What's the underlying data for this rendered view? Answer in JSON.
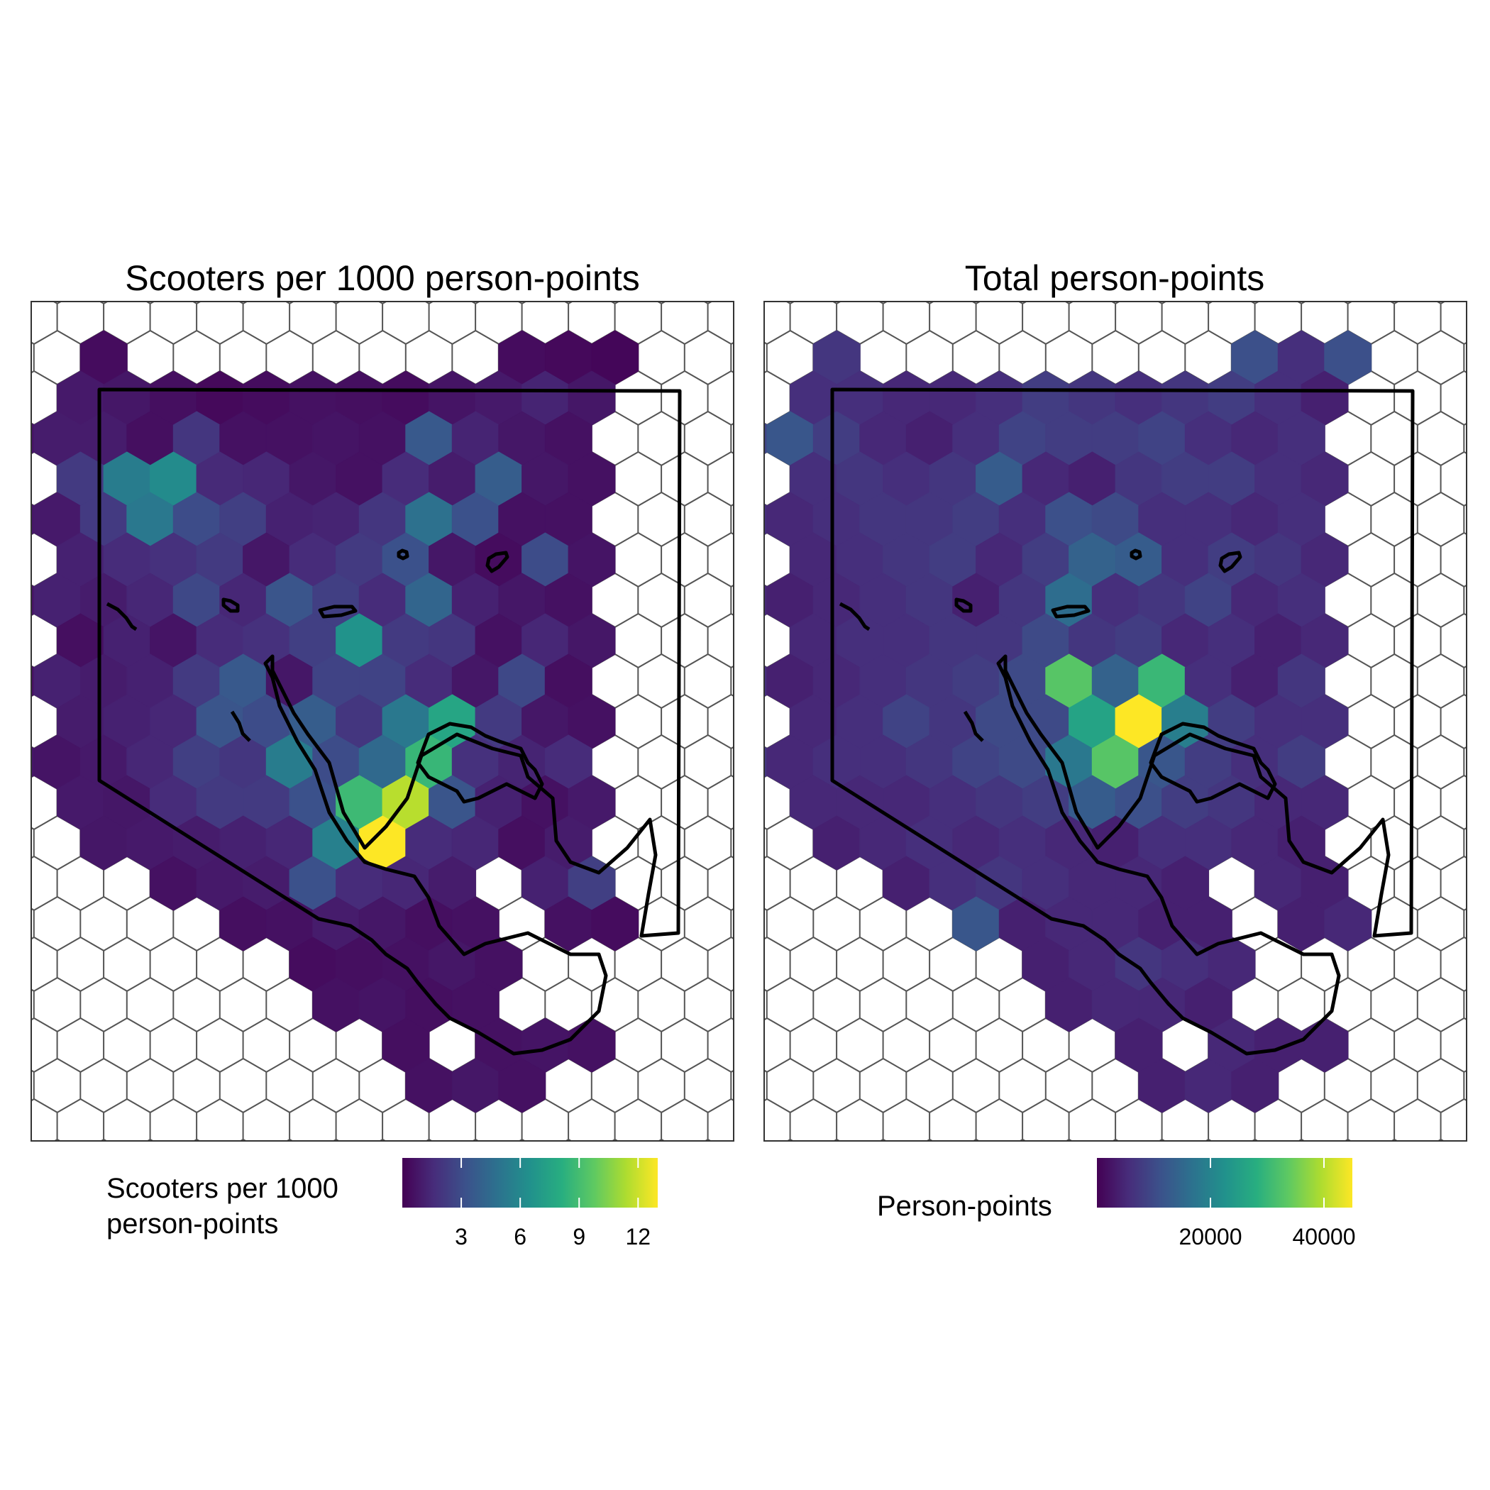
{
  "chart_data": [
    {
      "type": "heatmap",
      "title": "Scooters per 1000 person-points",
      "legend": {
        "title_lines": [
          "Scooters per 1000",
          "person-points"
        ],
        "ticks": [
          "3",
          "6",
          "9",
          "12"
        ],
        "tick_values": [
          3,
          6,
          9,
          12
        ],
        "range": [
          0,
          13
        ],
        "position": "bottom"
      },
      "value_range": [
        0,
        13
      ],
      "grid": {
        "rows": [
          {
            "start": 2,
            "values": [
              0.4,
              null,
              null,
              null,
              null,
              null,
              null,
              null,
              null,
              0.4,
              0.3,
              0.2
            ]
          },
          {
            "start": 1,
            "values": [
              0.9,
              0.8,
              0.5,
              0.3,
              0.4,
              0.6,
              0.5,
              0.4,
              0.7,
              0.9,
              1.3,
              0.8
            ]
          },
          {
            "start": 0,
            "values": [
              0.7,
              1.0,
              1.0,
              0.5,
              2.0,
              0.6,
              0.6,
              0.7,
              0.6,
              3.6,
              1.3,
              0.8,
              0.6
            ]
          },
          {
            "start": 1,
            "values": [
              2.2,
              5.4,
              6.2,
              1.5,
              1.4,
              0.8,
              0.6,
              1.6,
              1.0,
              3.8,
              0.8,
              0.6
            ]
          },
          {
            "start": 0,
            "values": [
              0.8,
              0.9,
              2.2,
              5.2,
              3.0,
              2.4,
              1.2,
              1.3,
              2.0,
              4.8,
              3.2,
              0.6,
              0.6
            ]
          },
          {
            "start": 1,
            "values": [
              1.2,
              1.6,
              1.8,
              2.2,
              0.8,
              1.6,
              2.2,
              3.2,
              0.8,
              0.4,
              3.0,
              0.7
            ]
          },
          {
            "start": 0,
            "values": [
              0.7,
              1.2,
              1.0,
              1.4,
              2.8,
              1.4,
              3.4,
              2.4,
              1.6,
              4.2,
              1.2,
              0.8,
              0.6
            ]
          },
          {
            "start": 1,
            "values": [
              0.5,
              1.2,
              0.7,
              1.6,
              1.8,
              2.4,
              6.6,
              2.2,
              2.0,
              0.6,
              1.4,
              0.8
            ]
          },
          {
            "start": 0,
            "values": [
              0.6,
              1.2,
              1.0,
              1.2,
              2.2,
              3.6,
              0.8,
              2.6,
              2.6,
              1.6,
              0.8,
              2.8,
              0.5
            ]
          },
          {
            "start": 1,
            "values": [
              1.0,
              1.2,
              1.4,
              3.4,
              3.0,
              3.8,
              2.0,
              5.2,
              7.6,
              2.2,
              0.8,
              0.6
            ]
          },
          {
            "start": 0,
            "values": [
              0.8,
              0.7,
              0.9,
              1.4,
              2.4,
              2.0,
              5.4,
              3.0,
              4.4,
              8.6,
              1.8,
              1.3,
              1.6
            ]
          },
          {
            "start": 1,
            "values": [
              0.9,
              0.8,
              1.6,
              2.2,
              2.2,
              3.2,
              8.8,
              11.6,
              3.4,
              1.2,
              0.6,
              0.9
            ]
          },
          {
            "start": 2,
            "values": [
              0.8,
              0.9,
              1.0,
              1.2,
              1.4,
              5.6,
              13.0,
              1.6,
              1.4,
              0.5,
              1.0
            ]
          },
          {
            "start": 3,
            "values": [
              0.6,
              0.9,
              1.0,
              3.2,
              1.6,
              1.4,
              1.0,
              null,
              1.2,
              2.4
            ]
          },
          {
            "start": 5,
            "values": [
              0.5,
              0.6,
              1.0,
              0.8,
              0.5,
              0.6,
              null,
              0.6,
              0.4
            ]
          },
          {
            "start": 6,
            "values": [
              0.4,
              0.5,
              0.6,
              0.8,
              0.6
            ]
          },
          {
            "start": 7,
            "values": [
              0.6,
              0.7,
              0.5,
              0.6
            ]
          },
          {
            "start": 8,
            "values": [
              0.5,
              null,
              0.6,
              0.7,
              0.6
            ]
          },
          {
            "start": 9,
            "values": [
              0.6,
              0.8,
              0.6
            ]
          }
        ]
      }
    },
    {
      "type": "heatmap",
      "title": "Total person-points",
      "legend": {
        "title_lines": [
          "Person-points"
        ],
        "ticks": [
          "20000",
          "40000"
        ],
        "tick_values": [
          20000,
          40000
        ],
        "range": [
          0,
          45000
        ],
        "position": "bottom"
      },
      "value_range": [
        0,
        45000
      ],
      "grid": {
        "rows": [
          {
            "start": 2,
            "values": [
              7000,
              null,
              null,
              null,
              null,
              null,
              null,
              null,
              null,
              11000,
              6000,
              11000
            ]
          },
          {
            "start": 1,
            "values": [
              6000,
              6000,
              5000,
              5000,
              6000,
              8000,
              7000,
              6000,
              7000,
              8000,
              6000,
              4000
            ]
          },
          {
            "start": 0,
            "values": [
              9000,
              12000,
              8000,
              5000,
              4000,
              6000,
              9000,
              8000,
              8000,
              9000,
              6000,
              5000,
              6000
            ]
          },
          {
            "start": 1,
            "values": [
              6000,
              7000,
              6000,
              7000,
              13000,
              5000,
              4000,
              7000,
              8000,
              8000,
              6000,
              5000
            ]
          },
          {
            "start": 0,
            "values": [
              6000,
              5000,
              6000,
              7000,
              7000,
              8000,
              6000,
              11000,
              10000,
              6000,
              6000,
              5000,
              6000
            ]
          },
          {
            "start": 1,
            "values": [
              5000,
              6000,
              7000,
              8000,
              5000,
              8000,
              14000,
              13000,
              6000,
              8000,
              7000,
              5000
            ]
          },
          {
            "start": 0,
            "values": [
              5000,
              4000,
              5000,
              6000,
              7000,
              4000,
              7000,
              16000,
              6000,
              7000,
              9000,
              5000,
              6000
            ]
          },
          {
            "start": 1,
            "values": [
              5000,
              6000,
              6000,
              7000,
              7000,
              10000,
              7000,
              8000,
              5000,
              6000,
              4000,
              5000
            ]
          },
          {
            "start": 0,
            "values": [
              6000,
              4000,
              5000,
              6000,
              7000,
              8000,
              10000,
              33000,
              14000,
              30000,
              6000,
              4000,
              7000
            ]
          },
          {
            "start": 1,
            "values": [
              5000,
              6000,
              9000,
              7000,
              10000,
              10000,
              26000,
              45000,
              19000,
              8000,
              6000,
              6000
            ]
          },
          {
            "start": 0,
            "values": [
              7000,
              5000,
              6000,
              6000,
              7000,
              9000,
              10000,
              18000,
              33000,
              12000,
              8000,
              6000,
              8000
            ]
          },
          {
            "start": 1,
            "values": [
              5000,
              5000,
              5000,
              6000,
              7000,
              8000,
              13000,
              11000,
              8000,
              7000,
              5000,
              5000
            ]
          },
          {
            "start": 2,
            "values": [
              4000,
              5000,
              6000,
              5000,
              6000,
              5000,
              4000,
              6000,
              6000,
              5000,
              4000
            ]
          },
          {
            "start": 3,
            "values": [
              4000,
              6000,
              7000,
              6000,
              5000,
              5000,
              4000,
              null,
              5000,
              4000
            ]
          },
          {
            "start": 5,
            "values": [
              12000,
              4000,
              5000,
              5000,
              4000,
              4000,
              null,
              4000,
              5000
            ]
          },
          {
            "start": 6,
            "values": [
              4000,
              5000,
              7000,
              6000,
              5000
            ]
          },
          {
            "start": 7,
            "values": [
              4000,
              5000,
              5000,
              4000
            ]
          },
          {
            "start": 8,
            "values": [
              4000,
              null,
              5000,
              4000,
              4000
            ]
          },
          {
            "start": 9,
            "values": [
              4000,
              5000,
              4000
            ]
          }
        ]
      }
    }
  ]
}
